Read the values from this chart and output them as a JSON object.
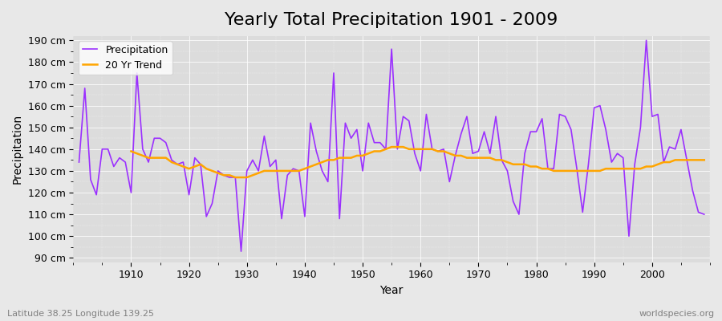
{
  "title": "Yearly Total Precipitation 1901 - 2009",
  "xlabel": "Year",
  "ylabel": "Precipitation",
  "lat_lon_label": "Latitude 38.25 Longitude 139.25",
  "source_label": "worldspecies.org",
  "years": [
    1901,
    1902,
    1903,
    1904,
    1905,
    1906,
    1907,
    1908,
    1909,
    1910,
    1911,
    1912,
    1913,
    1914,
    1915,
    1916,
    1917,
    1918,
    1919,
    1920,
    1921,
    1922,
    1923,
    1924,
    1925,
    1926,
    1927,
    1928,
    1929,
    1930,
    1931,
    1932,
    1933,
    1934,
    1935,
    1936,
    1937,
    1938,
    1939,
    1940,
    1941,
    1942,
    1943,
    1944,
    1945,
    1946,
    1947,
    1948,
    1949,
    1950,
    1951,
    1952,
    1953,
    1954,
    1955,
    1956,
    1957,
    1958,
    1959,
    1960,
    1961,
    1962,
    1963,
    1964,
    1965,
    1966,
    1967,
    1968,
    1969,
    1970,
    1971,
    1972,
    1973,
    1974,
    1975,
    1976,
    1977,
    1978,
    1979,
    1980,
    1981,
    1982,
    1983,
    1984,
    1985,
    1986,
    1987,
    1988,
    1989,
    1990,
    1991,
    1992,
    1993,
    1994,
    1995,
    1996,
    1997,
    1998,
    1999,
    2000,
    2001,
    2002,
    2003,
    2004,
    2005,
    2006,
    2007,
    2008,
    2009
  ],
  "precip": [
    134,
    168,
    126,
    119,
    140,
    140,
    132,
    136,
    134,
    120,
    175,
    140,
    134,
    145,
    145,
    143,
    135,
    133,
    134,
    119,
    136,
    133,
    109,
    115,
    130,
    128,
    127,
    127,
    93,
    130,
    135,
    130,
    146,
    132,
    135,
    108,
    128,
    131,
    130,
    109,
    152,
    139,
    130,
    125,
    175,
    108,
    152,
    145,
    149,
    130,
    152,
    143,
    143,
    140,
    186,
    140,
    155,
    153,
    138,
    130,
    156,
    140,
    139,
    140,
    125,
    137,
    147,
    155,
    138,
    139,
    148,
    138,
    155,
    135,
    130,
    116,
    110,
    138,
    148,
    148,
    154,
    131,
    131,
    156,
    155,
    149,
    131,
    111,
    133,
    159,
    160,
    149,
    134,
    138,
    136,
    100,
    133,
    150,
    190,
    155,
    156,
    134,
    141,
    140,
    149,
    135,
    121,
    111,
    110
  ],
  "trend_years": [
    1910,
    1911,
    1912,
    1913,
    1914,
    1915,
    1916,
    1917,
    1918,
    1919,
    1920,
    1921,
    1922,
    1923,
    1924,
    1925,
    1926,
    1927,
    1928,
    1929,
    1930,
    1931,
    1932,
    1933,
    1934,
    1935,
    1936,
    1937,
    1938,
    1939,
    1940,
    1941,
    1942,
    1943,
    1944,
    1945,
    1946,
    1947,
    1948,
    1949,
    1950,
    1951,
    1952,
    1953,
    1954,
    1955,
    1956,
    1957,
    1958,
    1959,
    1960,
    1961,
    1962,
    1963,
    1964,
    1965,
    1966,
    1967,
    1968,
    1969,
    1970,
    1971,
    1972,
    1973,
    1974,
    1975,
    1976,
    1977,
    1978,
    1979,
    1980,
    1981,
    1982,
    1983,
    1984,
    1985,
    1986,
    1987,
    1988,
    1989,
    1990,
    1991,
    1992,
    1993,
    1994,
    1995,
    1996,
    1997,
    1998,
    1999,
    2000,
    2001,
    2002,
    2003,
    2004,
    2005,
    2006,
    2007,
    2008,
    2009
  ],
  "trend": [
    139,
    138,
    137,
    136,
    136,
    136,
    136,
    134,
    133,
    132,
    131,
    132,
    133,
    131,
    130,
    129,
    128,
    128,
    127,
    127,
    127,
    128,
    129,
    130,
    130,
    130,
    130,
    130,
    130,
    130,
    131,
    132,
    133,
    134,
    135,
    135,
    136,
    136,
    136,
    137,
    137,
    138,
    139,
    139,
    140,
    141,
    141,
    141,
    140,
    140,
    140,
    140,
    140,
    139,
    139,
    138,
    137,
    137,
    136,
    136,
    136,
    136,
    136,
    135,
    135,
    134,
    133,
    133,
    133,
    132,
    132,
    131,
    131,
    130,
    130,
    130,
    130,
    130,
    130,
    130,
    130,
    130,
    131,
    131,
    131,
    131,
    131,
    131,
    131,
    132,
    132,
    133,
    134,
    134,
    135,
    135,
    135,
    135,
    135,
    135
  ],
  "precip_color": "#9b30ff",
  "trend_color": "#ffa500",
  "background_color": "#e8e8e8",
  "plot_background": "#dcdcdc",
  "ylim": [
    88,
    192
  ],
  "yticks": [
    90,
    100,
    110,
    120,
    130,
    140,
    150,
    160,
    170,
    180,
    190
  ],
  "ytick_labels": [
    "90 cm",
    "100 cm",
    "110 cm",
    "120 cm",
    "130 cm",
    "140 cm",
    "150 cm",
    "160 cm",
    "170 cm",
    "180 cm",
    "190 cm"
  ],
  "xticks": [
    1910,
    1920,
    1930,
    1940,
    1950,
    1960,
    1970,
    1980,
    1990,
    2000
  ],
  "title_fontsize": 16,
  "axis_label_fontsize": 10,
  "tick_fontsize": 9
}
